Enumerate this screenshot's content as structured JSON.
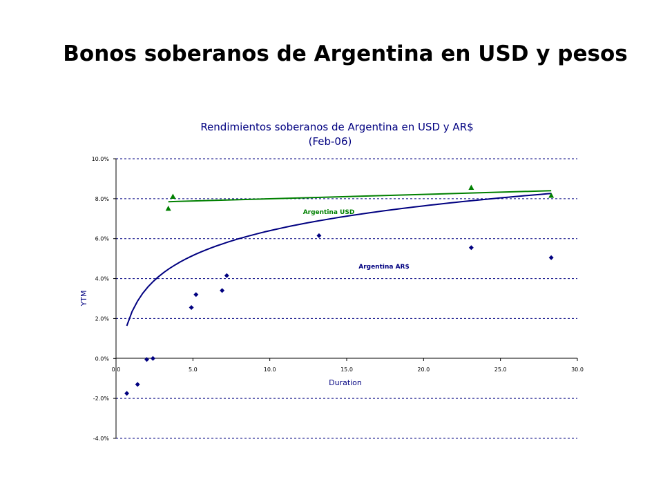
{
  "slide": {
    "title": "Bonos soberanos de Argentina en USD y pesos"
  },
  "chart_data": {
    "type": "scatter",
    "title": [
      "Rendimientos soberanos de Argentina en USD y AR$",
      "(Feb-06)"
    ],
    "xlabel": "Duration",
    "ylabel": "YTM",
    "xlim": [
      0,
      30
    ],
    "ylim": [
      -4,
      10
    ],
    "x_ticks": [
      "0.0",
      "5.0",
      "10.0",
      "15.0",
      "20.0",
      "25.0",
      "30.0"
    ],
    "y_ticks": [
      "10.0%",
      "8.0%",
      "6.0%",
      "4.0%",
      "2.0%",
      "0.0%",
      "-2.0%",
      "-4.0%"
    ],
    "grid": "horizontal dashed",
    "series": [
      {
        "name": "Argentina USD",
        "marker": "triangle",
        "color": "#008000",
        "points": [
          [
            3.4,
            7.5
          ],
          [
            3.7,
            8.1
          ],
          [
            23.1,
            8.55
          ],
          [
            28.3,
            8.15
          ]
        ],
        "trend": {
          "type": "linear",
          "x_range": [
            3.4,
            28.3
          ],
          "y_range": [
            7.85,
            8.4
          ]
        }
      },
      {
        "name": "Argentina AR$",
        "marker": "diamond",
        "color": "#000080",
        "points": [
          [
            0.7,
            -1.75
          ],
          [
            1.4,
            -1.3
          ],
          [
            2.0,
            -0.05
          ],
          [
            2.4,
            0.0
          ],
          [
            4.9,
            2.55
          ],
          [
            5.2,
            3.2
          ],
          [
            6.9,
            3.4
          ],
          [
            7.2,
            4.15
          ],
          [
            13.2,
            6.15
          ],
          [
            23.1,
            5.55
          ],
          [
            28.3,
            5.05
          ]
        ],
        "trend": {
          "type": "logarithmic",
          "a": 4.125,
          "b": 2.273,
          "x_range": [
            0.7,
            28.3
          ]
        }
      }
    ]
  }
}
